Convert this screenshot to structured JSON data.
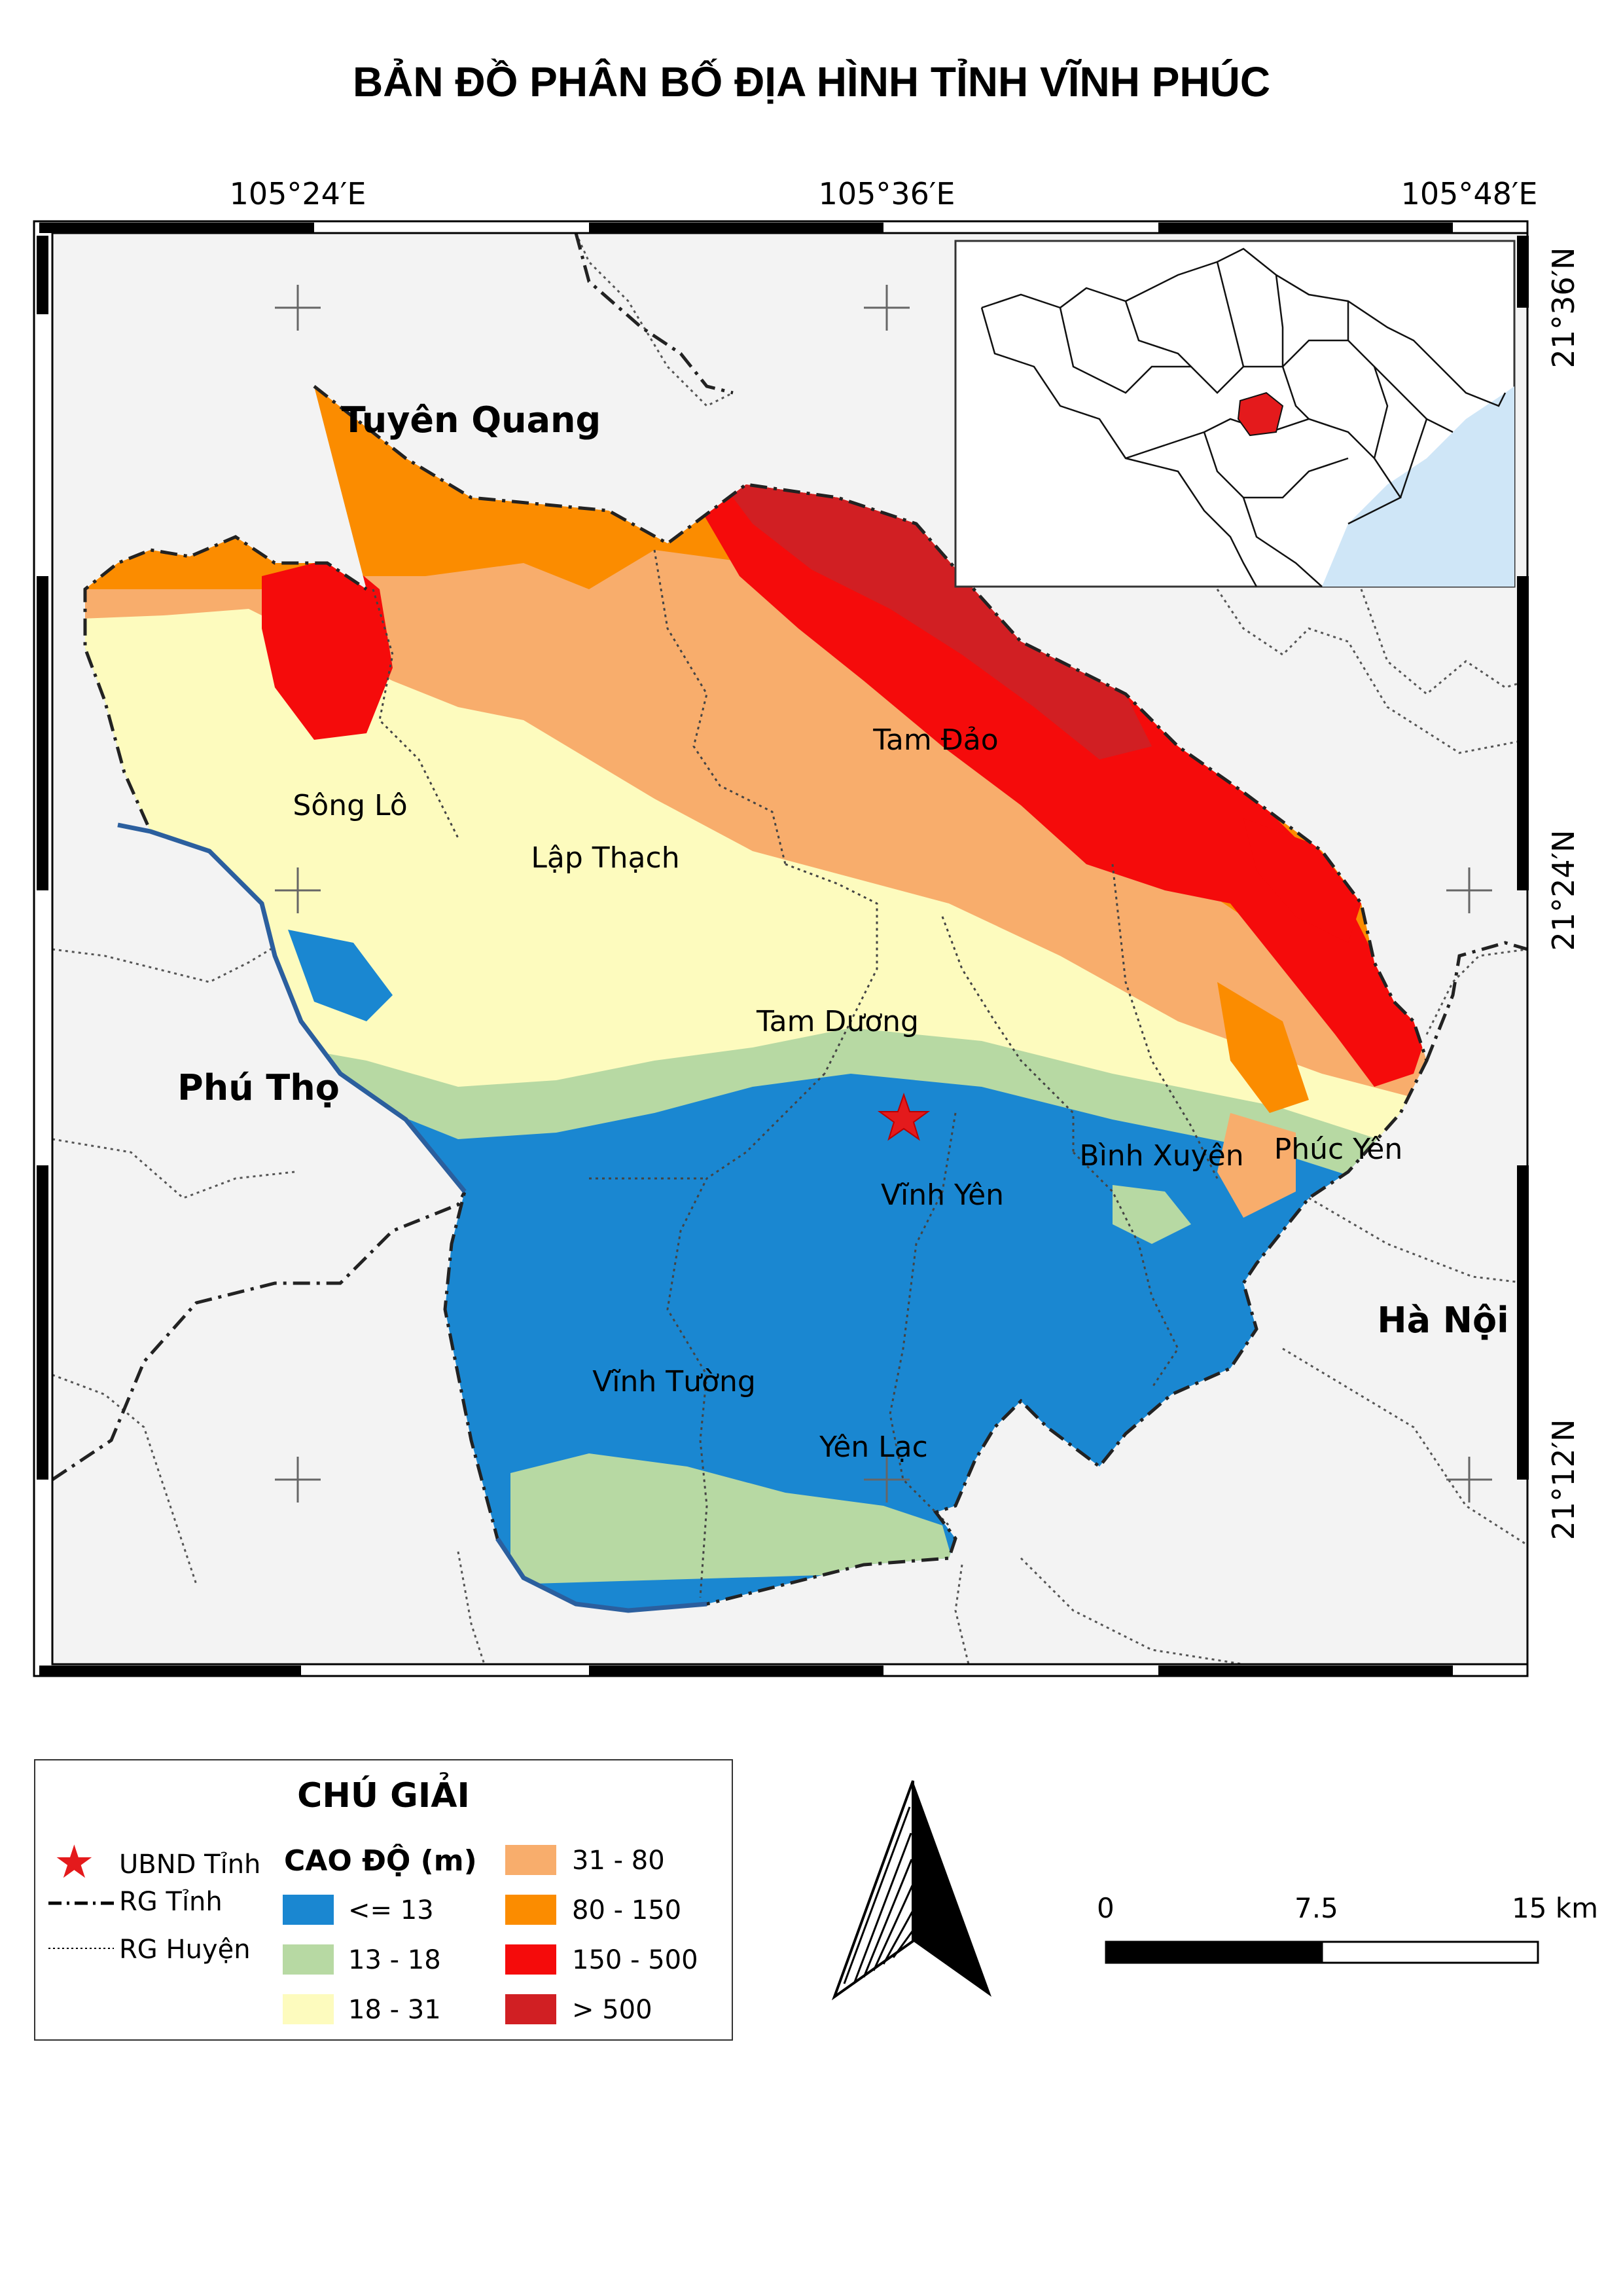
{
  "title": "BẢN ĐỒ PHÂN BỐ ĐỊA HÌNH TỈNH VĨNH PHÚC",
  "graticule": {
    "lon_labels": [
      "105°24′E",
      "105°36′E",
      "105°48′E"
    ],
    "lat_labels": [
      "21°36′N",
      "21°24′N",
      "21°12′N"
    ]
  },
  "neighbors": {
    "north": "Tuyên Quang",
    "west": "Phú Thọ",
    "east": "Hà Nội"
  },
  "districts": [
    "Tam Đảo",
    "Sông Lô",
    "Lập Thạch",
    "Tam Dương",
    "Bình Xuyên",
    "Phúc Yên",
    "Vĩnh Yên",
    "Vĩnh Tường",
    "Yên Lạc"
  ],
  "legend": {
    "title": "CHÚ GIẢI",
    "symbols": [
      {
        "label": "UBND Tỉnh",
        "icon": "red-star-icon"
      },
      {
        "label": "RG Tỉnh",
        "icon": "dash-dot-line-icon"
      },
      {
        "label": "RG Huyện",
        "icon": "dotted-line-icon"
      }
    ],
    "elevation_title": "CAO ĐỘ (m)",
    "classes": [
      {
        "label": "<= 13",
        "color": "#1a87d1"
      },
      {
        "label": "13 - 18",
        "color": "#b7d9a3"
      },
      {
        "label": "18 - 31",
        "color": "#fdfbbe"
      },
      {
        "label": "31 - 80",
        "color": "#f8ad6c"
      },
      {
        "label": "80 - 150",
        "color": "#fb8c00"
      },
      {
        "label": "150 - 500",
        "color": "#f50b0b"
      },
      {
        "label": "> 500",
        "color": "#d11f23"
      }
    ]
  },
  "scale_bar": {
    "labels": [
      "0",
      "7.5",
      "15 km"
    ]
  },
  "colors": {
    "background": "#f3f3f3",
    "sea": "#cfe6f7",
    "province_highlight": "#e41a1c",
    "river": "#2b5f9e"
  }
}
